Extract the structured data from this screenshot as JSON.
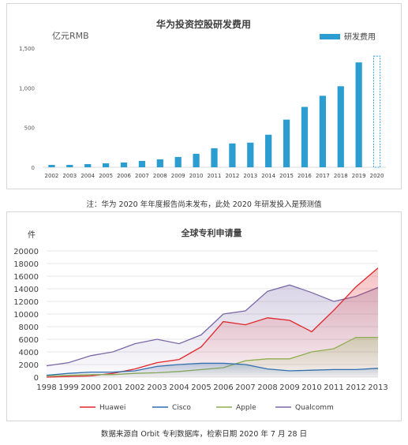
{
  "note1": "注：华为 2020 年年度报告尚未发布，此处 2020 年研发投入是预测值",
  "note2": "数据来源自 Orbit 专利数据库，检索日期 2020 年 7 月 28 日",
  "colors": {
    "bar": "#2b9dd1",
    "huawei": "#e0262a",
    "cisco": "#2f6fb0",
    "apple": "#8fae4e",
    "qualcomm": "#7b68a6"
  },
  "chart_data": [
    {
      "type": "bar",
      "title": "华为投资控股研发费用",
      "unit_label": "亿元RMB",
      "legend": "研发费用",
      "legend_position": "top-right",
      "categories": [
        "2002",
        "2003",
        "2004",
        "2005",
        "2006",
        "2007",
        "2008",
        "2009",
        "2010",
        "2011",
        "2012",
        "2013",
        "2014",
        "2015",
        "2016",
        "2017",
        "2018",
        "2019",
        "2020"
      ],
      "values": [
        30,
        30,
        40,
        50,
        60,
        80,
        100,
        130,
        170,
        240,
        300,
        310,
        410,
        600,
        760,
        900,
        1020,
        1320,
        1400
      ],
      "projected_index": 18,
      "yticks": [
        "0",
        "500",
        "1,000",
        "1,500"
      ],
      "ylim": [
        0,
        1500
      ],
      "grid": false
    },
    {
      "type": "area",
      "title": "全球专利申请量",
      "ylabel": "件",
      "x": [
        "1998",
        "1999",
        "2000",
        "2001",
        "2002",
        "2003",
        "2004",
        "2005",
        "2006",
        "2007",
        "2008",
        "2009",
        "2010",
        "2011",
        "2012",
        "2013"
      ],
      "ylim": [
        0,
        20000
      ],
      "yticks": [
        "0",
        "2000",
        "4000",
        "6000",
        "8000",
        "10000",
        "12000",
        "14000",
        "16000",
        "18000",
        "20000"
      ],
      "legend_position": "bottom",
      "grid": true,
      "series": [
        {
          "name": "Huawei",
          "values": [
            0,
            100,
            200,
            600,
            1300,
            2300,
            2800,
            4800,
            8800,
            8300,
            9400,
            9000,
            7200,
            10600,
            14300,
            17300
          ]
        },
        {
          "name": "Cisco",
          "values": [
            300,
            600,
            800,
            800,
            1000,
            1700,
            2000,
            2200,
            2200,
            2000,
            1300,
            1000,
            1100,
            1200,
            1200,
            1400
          ]
        },
        {
          "name": "Apple",
          "values": [
            200,
            300,
            400,
            400,
            600,
            700,
            900,
            1200,
            1500,
            2600,
            2900,
            2900,
            4000,
            4500,
            6300,
            6300
          ]
        },
        {
          "name": "Qualcomm",
          "values": [
            1800,
            2300,
            3400,
            4000,
            5300,
            6000,
            5300,
            6700,
            10000,
            10500,
            13600,
            14600,
            13400,
            12000,
            12800,
            14200
          ]
        }
      ]
    }
  ]
}
